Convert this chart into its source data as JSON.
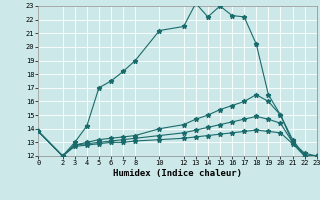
{
  "xlabel": "Humidex (Indice chaleur)",
  "bg_color": "#cde8e8",
  "line_color": "#1a6b6b",
  "grid_color": "#ffffff",
  "xlim": [
    0,
    23
  ],
  "ylim": [
    12,
    23
  ],
  "xticks": [
    0,
    2,
    3,
    4,
    5,
    6,
    7,
    8,
    10,
    12,
    13,
    14,
    15,
    16,
    17,
    18,
    19,
    20,
    21,
    22,
    23
  ],
  "yticks": [
    12,
    13,
    14,
    15,
    16,
    17,
    18,
    19,
    20,
    21,
    22,
    23
  ],
  "lines": [
    {
      "x": [
        0,
        2,
        3,
        4,
        5,
        6,
        7,
        8,
        10,
        12,
        13,
        14,
        15,
        16,
        17,
        18,
        19,
        20,
        21,
        22,
        23
      ],
      "y": [
        13.8,
        12.0,
        13.0,
        14.2,
        17.0,
        17.5,
        18.2,
        19.0,
        21.2,
        21.5,
        23.2,
        22.2,
        23.0,
        22.3,
        22.2,
        20.2,
        16.5,
        15.0,
        13.0,
        12.0,
        12.0
      ]
    },
    {
      "x": [
        0,
        2,
        3,
        4,
        5,
        6,
        7,
        8,
        10,
        12,
        13,
        14,
        15,
        16,
        17,
        18,
        19,
        20,
        21,
        22,
        23
      ],
      "y": [
        13.8,
        12.0,
        12.8,
        13.0,
        13.2,
        13.3,
        13.4,
        13.5,
        14.0,
        14.3,
        14.7,
        15.0,
        15.4,
        15.7,
        16.0,
        16.5,
        16.0,
        15.0,
        13.2,
        12.0,
        12.0
      ]
    },
    {
      "x": [
        0,
        2,
        3,
        4,
        5,
        6,
        7,
        8,
        10,
        12,
        13,
        14,
        15,
        16,
        17,
        18,
        19,
        20,
        21,
        22,
        23
      ],
      "y": [
        13.8,
        12.0,
        12.8,
        12.9,
        13.0,
        13.1,
        13.2,
        13.3,
        13.5,
        13.7,
        13.9,
        14.1,
        14.3,
        14.5,
        14.7,
        14.9,
        14.7,
        14.4,
        13.0,
        12.2,
        12.0
      ]
    },
    {
      "x": [
        0,
        2,
        3,
        4,
        5,
        6,
        7,
        8,
        10,
        12,
        13,
        14,
        15,
        16,
        17,
        18,
        19,
        20,
        21,
        22,
        23
      ],
      "y": [
        13.8,
        12.0,
        12.7,
        12.8,
        12.9,
        13.0,
        13.0,
        13.1,
        13.2,
        13.3,
        13.4,
        13.5,
        13.6,
        13.7,
        13.8,
        13.9,
        13.8,
        13.7,
        12.9,
        12.0,
        12.0
      ]
    }
  ]
}
